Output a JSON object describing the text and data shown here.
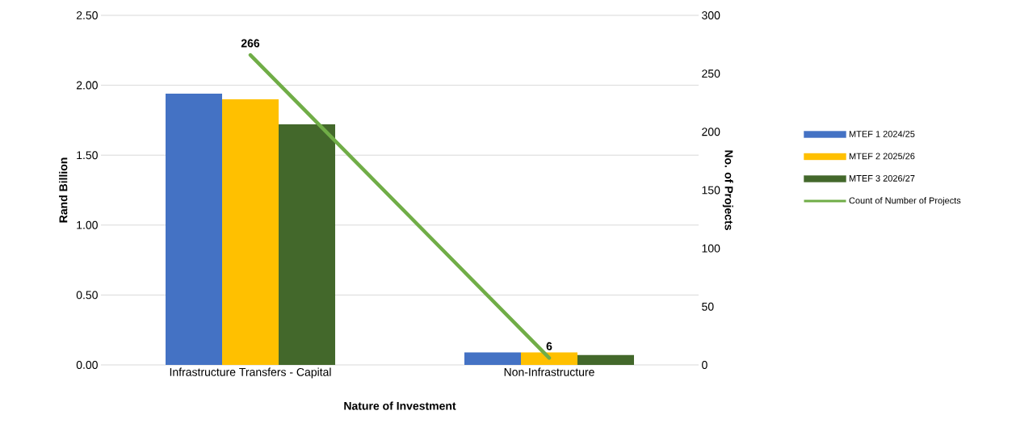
{
  "chart_data": {
    "type": "bar",
    "xlabel": "Nature of Investment",
    "ylabel": "Rand Billion",
    "y2label": "No. of Projects",
    "categories": [
      "Infrastructure Transfers - Capital",
      "Non-Infrastructure"
    ],
    "series": [
      {
        "name": "MTEF 1 2024/25",
        "color": "#4472c4",
        "values": [
          1.94,
          0.09
        ]
      },
      {
        "name": "MTEF 2 2025/26",
        "color": "#ffc000",
        "values": [
          1.9,
          0.09
        ]
      },
      {
        "name": "MTEF 3 2026/27",
        "color": "#43682b",
        "values": [
          1.72,
          0.07
        ]
      },
      {
        "name": "Count of Number of Projects",
        "type": "line",
        "axis": "y2",
        "color": "#70ad47",
        "values": [
          266,
          6
        ],
        "value_labels": [
          "266",
          "6"
        ]
      }
    ],
    "ylim": [
      0,
      2.5
    ],
    "yticks": [
      {
        "value": 0,
        "label": "0.00"
      },
      {
        "value": 0.5,
        "label": "0.50"
      },
      {
        "value": 1,
        "label": "1.00"
      },
      {
        "value": 1.5,
        "label": "1.50"
      },
      {
        "value": 2,
        "label": "2.00"
      },
      {
        "value": 2.5,
        "label": "2.50"
      }
    ],
    "y2lim": [
      0,
      300
    ],
    "y2ticks": [
      0,
      50,
      100,
      150,
      200,
      250,
      300
    ],
    "grid": "y",
    "legend": "right",
    "marker": "none"
  }
}
